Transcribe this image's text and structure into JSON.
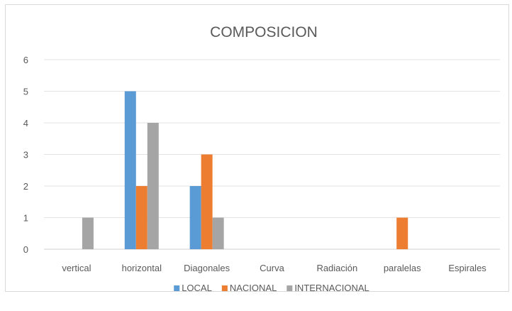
{
  "chart_data": {
    "type": "bar",
    "title": "COMPOSICION",
    "xlabel": "",
    "ylabel": "",
    "categories": [
      "vertical",
      "horizontal",
      "Diagonales",
      "Curva",
      "Radiación",
      "paralelas",
      "Espirales"
    ],
    "ylim": [
      0,
      6
    ],
    "yticks": [
      "0",
      "1",
      "2",
      "3",
      "4",
      "5",
      "6"
    ],
    "grid": true,
    "legend_position": "bottom",
    "series": [
      {
        "name": "LOCAL",
        "color": "#5b9bd5",
        "values": [
          0,
          5,
          2,
          0,
          0,
          0,
          0
        ]
      },
      {
        "name": "NACIONAL",
        "color": "#ed7d31",
        "values": [
          0,
          2,
          3,
          0,
          0,
          1,
          0
        ]
      },
      {
        "name": "INTERNACIONAL",
        "color": "#a5a5a5",
        "values": [
          1,
          4,
          1,
          0,
          0,
          0,
          0
        ]
      }
    ]
  }
}
